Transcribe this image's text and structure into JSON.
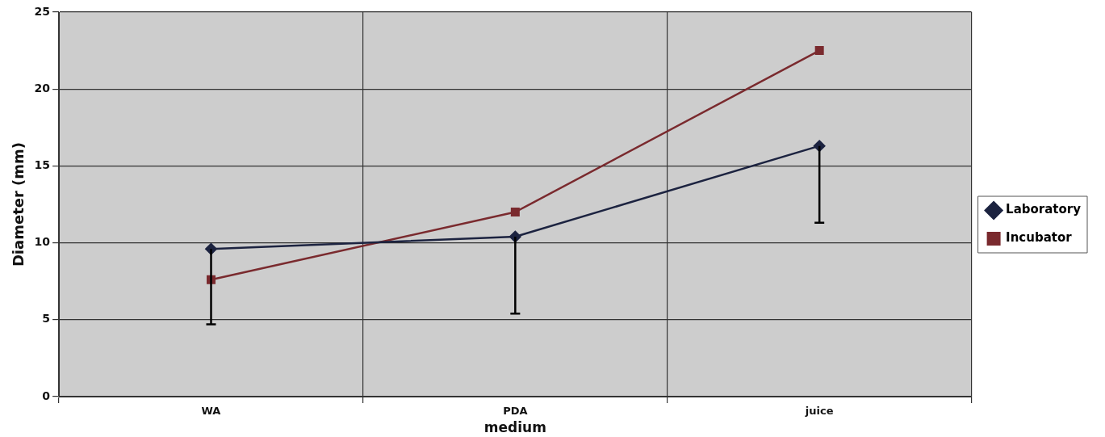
{
  "chart_data": {
    "type": "line",
    "xlabel": "medium",
    "ylabel": "Diameter (mm)",
    "categories": [
      "WA",
      "PDA",
      "juice"
    ],
    "series": [
      {
        "name": "Laboratory",
        "color": "#1c2340",
        "marker": "diamond",
        "values": [
          9.6,
          10.4,
          16.3
        ],
        "errors": [
          [
            4.7,
            9.6
          ],
          [
            5.4,
            10.4
          ],
          [
            11.3,
            16.3
          ]
        ]
      },
      {
        "name": "Incubator",
        "color": "#7a2a2e",
        "marker": "square",
        "values": [
          7.6,
          12.0,
          22.5
        ]
      }
    ],
    "ylim": [
      0,
      25
    ],
    "yticks": [
      0,
      5,
      10,
      15,
      20,
      25
    ],
    "grid": true,
    "legend": "right"
  }
}
